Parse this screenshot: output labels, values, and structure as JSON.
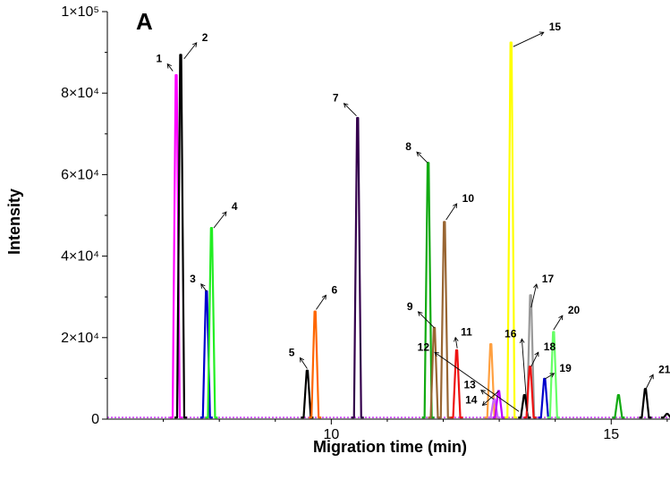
{
  "panel_label": "A",
  "chart_data": {
    "type": "line",
    "title": "",
    "xlabel": "Migration time (min)",
    "ylabel": "Intensity",
    "xlim": [
      6.0,
      16.05
    ],
    "ylim": [
      0,
      100000
    ],
    "x_ticks": [
      {
        "value": 10,
        "label": "10"
      },
      {
        "value": 15,
        "label": "15"
      }
    ],
    "y_ticks": [
      {
        "value": 0,
        "label": "0"
      },
      {
        "value": 20000,
        "label": "2×10⁴"
      },
      {
        "value": 40000,
        "label": "4×10⁴"
      },
      {
        "value": 60000,
        "label": "6×10⁴"
      },
      {
        "value": 80000,
        "label": "8×10⁴"
      },
      {
        "value": 100000,
        "label": "1×10⁵"
      }
    ],
    "baseline": 400,
    "peaks": [
      {
        "label": "1",
        "x": 7.23,
        "height": 84000,
        "color": "#ff00ff"
      },
      {
        "label": "2",
        "x": 7.31,
        "height": 89000,
        "color": "#000000"
      },
      {
        "label": "3",
        "x": 7.77,
        "height": 31000,
        "color": "#0000cc"
      },
      {
        "label": "4",
        "x": 7.86,
        "height": 46500,
        "color": "#22ee22"
      },
      {
        "label": "5",
        "x": 9.57,
        "height": 11500,
        "color": "#000000"
      },
      {
        "label": "6",
        "x": 9.71,
        "height": 26000,
        "color": "#ff6600"
      },
      {
        "label": "7",
        "x": 10.47,
        "height": 73500,
        "color": "#33004c"
      },
      {
        "label": "8",
        "x": 11.73,
        "height": 62500,
        "color": "#11aa11"
      },
      {
        "label": "9",
        "x": 11.84,
        "height": 22000,
        "color": "#996633"
      },
      {
        "label": "10",
        "x": 12.02,
        "height": 48000,
        "color": "#996633"
      },
      {
        "label": "11",
        "x": 12.24,
        "height": 16500,
        "color": "#ee1111"
      },
      {
        "label": "12",
        "x": 12.85,
        "height": 18000,
        "color": "#ffa040"
      },
      {
        "label": "13",
        "x": 12.91,
        "height": 4500,
        "color": "#cc66ff"
      },
      {
        "label": "14",
        "x": 12.99,
        "height": 6500,
        "color": "#bb00ff"
      },
      {
        "label": "15",
        "x": 13.21,
        "height": 92000,
        "color": "#ffff00"
      },
      {
        "label": "16",
        "x": 13.45,
        "height": 5500,
        "color": "#000000"
      },
      {
        "label": "17",
        "x": 13.56,
        "height": 30000,
        "color": "#999999"
      },
      {
        "label": "18",
        "x": 13.55,
        "height": 12500,
        "color": "#ee1111"
      },
      {
        "label": "19",
        "x": 13.81,
        "height": 9500,
        "color": "#0000cc"
      },
      {
        "label": "20",
        "x": 13.97,
        "height": 21000,
        "color": "#66ff66"
      },
      {
        "label": "21",
        "x": 15.61,
        "height": 7000,
        "color": "#000000"
      },
      {
        "label": "",
        "x": 15.13,
        "height": 5500,
        "color": "#11aa11"
      },
      {
        "label": "",
        "x": 16.0,
        "height": 900,
        "color": "#000000"
      }
    ],
    "dashed_baseline_color": "#cc33ff",
    "annotations": [
      {
        "label": "1",
        "peak_x": 7.17,
        "peak_y": 85000
      },
      {
        "label": "2",
        "peak_x": 7.37,
        "peak_y": 88000
      },
      {
        "label": "3",
        "peak_x": 7.77,
        "peak_y": 31000
      },
      {
        "label": "4",
        "peak_x": 7.9,
        "peak_y": 46500
      },
      {
        "label": "5",
        "peak_x": 9.57,
        "peak_y": 12000
      },
      {
        "label": "6",
        "peak_x": 9.73,
        "peak_y": 26500
      },
      {
        "label": "7",
        "peak_x": 10.45,
        "peak_y": 74000
      },
      {
        "label": "8",
        "peak_x": 11.72,
        "peak_y": 62500
      },
      {
        "label": "9",
        "peak_x": 11.84,
        "peak_y": 22000
      },
      {
        "label": "10",
        "peak_x": 12.05,
        "peak_y": 48500
      },
      {
        "label": "11",
        "peak_x": 12.25,
        "peak_y": 17000
      },
      {
        "label": "12",
        "peak_x": 13.35,
        "peak_y": 1500
      },
      {
        "label": "13",
        "peak_x": 12.9,
        "peak_y": 4500
      },
      {
        "label": "14",
        "peak_x": 12.99,
        "peak_y": 6500
      },
      {
        "label": "15",
        "peak_x": 13.25,
        "peak_y": 91000
      },
      {
        "label": "16",
        "peak_x": 13.5,
        "peak_y": 1500
      },
      {
        "label": "17",
        "peak_x": 13.57,
        "peak_y": 27000
      },
      {
        "label": "18",
        "peak_x": 13.57,
        "peak_y": 12500
      },
      {
        "label": "19",
        "peak_x": 13.82,
        "peak_y": 9500
      },
      {
        "label": "20",
        "peak_x": 13.97,
        "peak_y": 21500
      },
      {
        "label": "21",
        "peak_x": 15.62,
        "peak_y": 7000
      }
    ]
  }
}
